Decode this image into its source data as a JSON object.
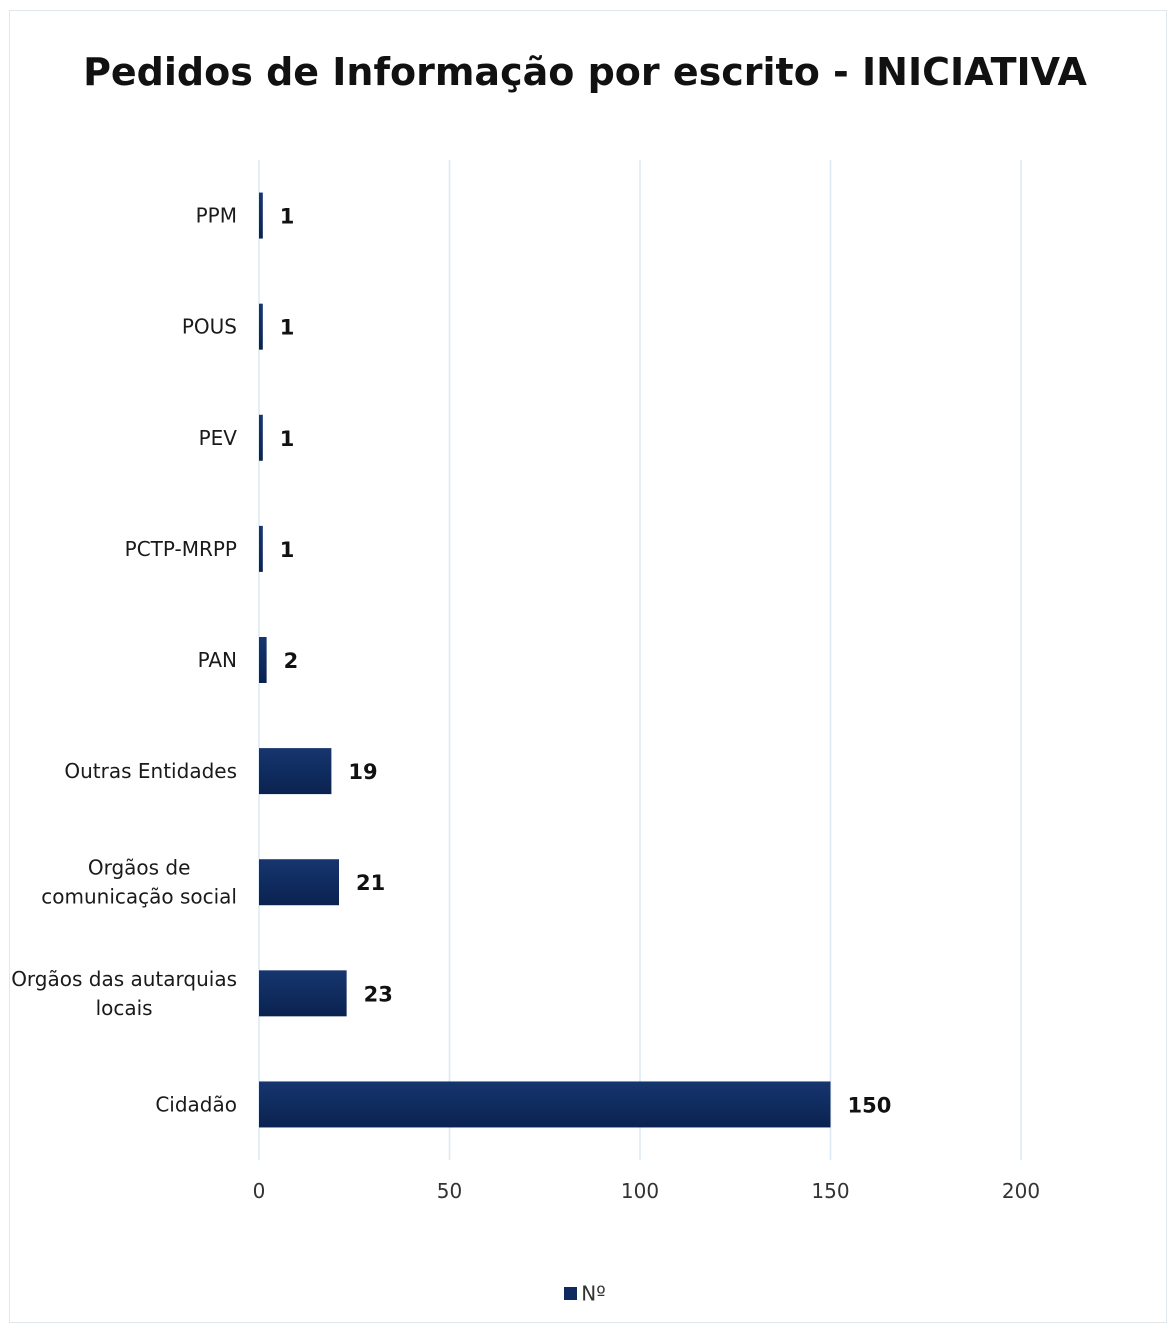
{
  "chart_data": {
    "type": "bar",
    "orientation": "horizontal",
    "title": "Pedidos de Informação por escrito - INICIATIVA",
    "categories": [
      "PPM",
      "POUS",
      "PEV",
      "PCTP-MRPP",
      "PAN",
      "Outras Entidades",
      "Orgãos de comunicação social",
      "Orgãos das autarquias locais",
      "Cidadão"
    ],
    "category_lines": [
      [
        "PPM"
      ],
      [
        "POUS"
      ],
      [
        "PEV"
      ],
      [
        "PCTP-MRPP"
      ],
      [
        "PAN"
      ],
      [
        "Outras Entidades"
      ],
      [
        "Orgãos de",
        "comunicação social"
      ],
      [
        "Orgãos das autarquias",
        "locais"
      ],
      [
        "Cidadão"
      ]
    ],
    "series": [
      {
        "name": "Nº",
        "values": [
          1,
          1,
          1,
          1,
          2,
          19,
          21,
          23,
          150
        ]
      }
    ],
    "data_labels": [
      "1",
      "1",
      "1",
      "1",
      "2",
      "19",
      "21",
      "23",
      "150"
    ],
    "xlim": [
      0,
      200
    ],
    "xticks": [
      0,
      50,
      100,
      150,
      200
    ],
    "xtick_labels": [
      "0",
      "50",
      "100",
      "150",
      "200"
    ],
    "xlabel": "",
    "ylabel": "",
    "grid": true,
    "legend_position": "bottom",
    "colors": {
      "bar": "#0e2a5e",
      "gridline": "#dce8f4",
      "frame": "#dfe7ef"
    }
  },
  "legend": {
    "label": "Nº"
  }
}
